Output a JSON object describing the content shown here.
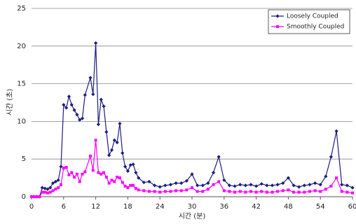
{
  "chart_data": {
    "type": "line",
    "x_label": "시간 (분)",
    "y_label": "시간 (초)",
    "x": [
      0,
      0.5,
      1,
      1.5,
      2,
      2.5,
      3,
      3.5,
      4,
      4.5,
      5,
      5.5,
      6,
      6.5,
      7,
      7.5,
      8,
      8.5,
      9,
      9.5,
      10,
      11,
      11.5,
      12,
      12.5,
      13,
      13.5,
      14,
      14.5,
      15,
      15.5,
      16,
      16.5,
      17,
      17.5,
      18,
      18.5,
      19,
      19.5,
      20,
      21,
      22,
      23,
      24,
      25,
      26,
      27,
      28,
      29,
      30,
      31,
      32,
      33,
      34,
      35,
      36,
      37,
      38,
      39,
      40,
      41,
      42,
      43,
      44,
      45,
      46,
      47,
      48,
      49,
      50,
      51,
      52,
      53,
      54,
      55,
      56,
      57,
      58,
      59,
      60
    ],
    "series": [
      {
        "name": "Loosely Coupled",
        "color": "#1c1c80",
        "values": [
          0,
          0,
          0,
          0,
          1.2,
          1.1,
          1.0,
          1.2,
          1.8,
          2.0,
          2.2,
          4.0,
          12.2,
          11.8,
          13.3,
          12.2,
          11.5,
          10.9,
          10.2,
          10.4,
          13.5,
          15.8,
          13.6,
          20.4,
          9.6,
          12.9,
          12.0,
          8.6,
          5.5,
          6.2,
          7.5,
          7.2,
          9.7,
          5.8,
          4.0,
          3.4,
          4.2,
          4.3,
          3.2,
          2.5,
          1.9,
          2.0,
          1.5,
          1.3,
          1.5,
          1.6,
          1.8,
          1.8,
          2.1,
          3.0,
          1.5,
          1.5,
          1.8,
          3.2,
          5.3,
          2.2,
          1.5,
          1.4,
          1.6,
          1.5,
          1.6,
          1.4,
          1.7,
          1.5,
          1.5,
          1.6,
          1.8,
          2.5,
          1.5,
          1.3,
          1.5,
          1.6,
          1.8,
          1.6,
          2.7,
          5.3,
          8.7,
          1.6,
          1.5,
          1.2
        ]
      },
      {
        "name": "Smoothly Coupled",
        "color": "#ff00ff",
        "values": [
          0,
          0,
          0,
          0,
          0.6,
          0.6,
          0.5,
          0.6,
          0.8,
          1.0,
          1.2,
          1.6,
          3.8,
          3.9,
          2.9,
          3.2,
          2.6,
          3.0,
          2.0,
          3.0,
          3.3,
          5.4,
          3.5,
          7.5,
          3.2,
          3.0,
          3.2,
          2.6,
          1.8,
          2.2,
          2.0,
          2.6,
          2.5,
          1.9,
          1.4,
          1.2,
          1.5,
          1.5,
          1.1,
          0.9,
          0.8,
          0.7,
          0.7,
          0.6,
          0.7,
          0.7,
          0.8,
          0.8,
          0.9,
          1.2,
          0.7,
          0.7,
          1.0,
          1.6,
          2.0,
          0.8,
          0.7,
          0.6,
          0.7,
          0.6,
          0.7,
          0.6,
          0.7,
          0.6,
          0.6,
          0.7,
          0.8,
          0.9,
          0.6,
          0.6,
          0.6,
          0.7,
          0.8,
          0.7,
          1.0,
          1.4,
          2.5,
          0.7,
          0.6,
          0.5
        ]
      }
    ],
    "xlim": [
      0,
      60
    ],
    "xticks": [
      0,
      6,
      12,
      18,
      24,
      30,
      36,
      42,
      48,
      54,
      60
    ],
    "ylim": [
      0,
      25
    ],
    "yticks": [
      0,
      5,
      10,
      15,
      20,
      25
    ],
    "grid": true,
    "legend": "upper right"
  }
}
